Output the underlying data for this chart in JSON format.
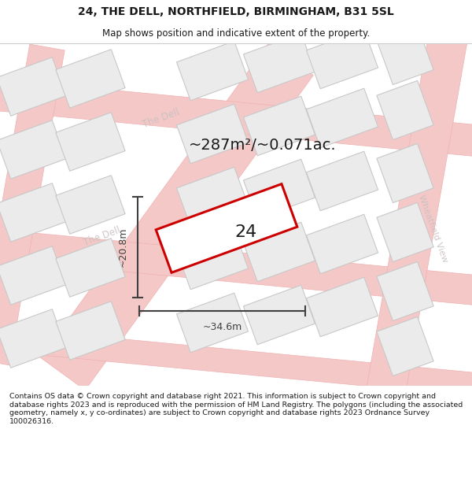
{
  "title": "24, THE DELL, NORTHFIELD, BIRMINGHAM, B31 5SL",
  "subtitle": "Map shows position and indicative extent of the property.",
  "area_text": "~287m²/~0.071ac.",
  "number_label": "24",
  "dim_width": "~34.6m",
  "dim_height": "~20.8m",
  "footer": "Contains OS data © Crown copyright and database right 2021. This information is subject to Crown copyright and database rights 2023 and is reproduced with the permission of HM Land Registry. The polygons (including the associated geometry, namely x, y co-ordinates) are subject to Crown copyright and database rights 2023 Ordnance Survey 100026316.",
  "bg_color": "#ffffff",
  "map_bg": "#ffffff",
  "road_color": "#f5c8c8",
  "road_edge": "#f0b0b0",
  "building_color": "#ebebeb",
  "building_edge": "#c8c8c8",
  "property_edge": "#cc0000",
  "street_label_color": "#c8c0c0",
  "title_color": "#1a1a1a",
  "dim_color": "#404040",
  "footer_color": "#1a1a1a",
  "footer_bg": "#f0f0f0"
}
